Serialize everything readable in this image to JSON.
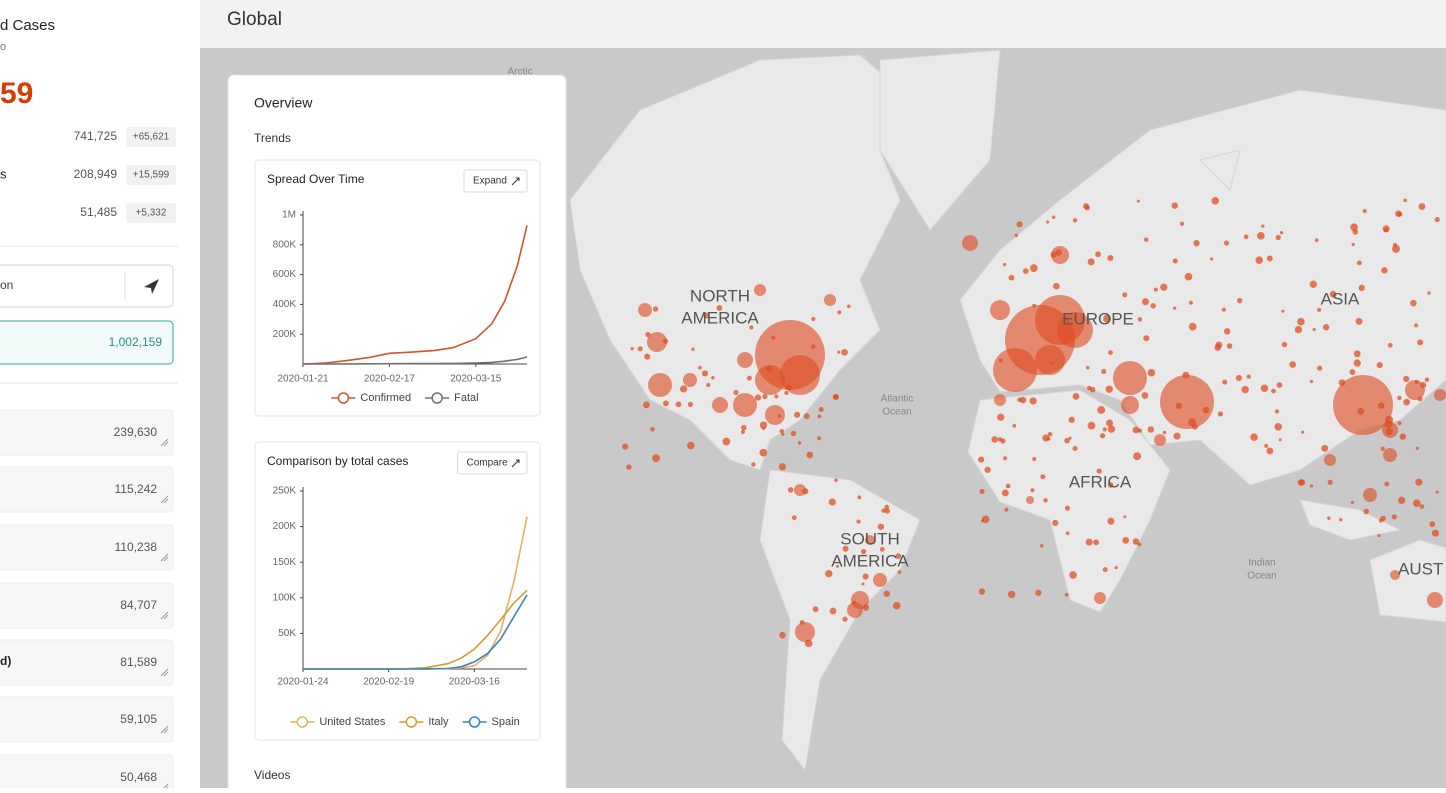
{
  "sidebar": {
    "title": "d Cases",
    "subtitle": "o",
    "total": "59",
    "stats": [
      {
        "value": "741,725",
        "delta": "+65,621"
      },
      {
        "label": "s",
        "value": "208,949",
        "delta": "+15,599"
      },
      {
        "value": "51,485",
        "delta": "+5,332"
      }
    ],
    "search": "on",
    "selected": "1,002,159",
    "list": [
      {
        "value": "239,630"
      },
      {
        "value": "115,242"
      },
      {
        "value": "110,238"
      },
      {
        "value": "84,707"
      },
      {
        "label": "d)",
        "value": "81,589"
      },
      {
        "value": "59,105"
      },
      {
        "value": "50,468"
      }
    ]
  },
  "header": {
    "title": "Global"
  },
  "map": {
    "continents": [
      [
        "NORTH",
        "AMERICA"
      ],
      [
        "EUROPE"
      ],
      [
        "ASIA"
      ],
      [
        "AFRICA"
      ],
      [
        "SOUTH",
        "AMERICA"
      ],
      [
        "AUST"
      ]
    ],
    "oceans": [
      [
        "Atlantic",
        "Ocean"
      ],
      [
        "Indian",
        "Ocean"
      ],
      [
        "Arctic"
      ]
    ]
  },
  "overview": {
    "title": "Overview",
    "section": "Trends",
    "videos": "Videos",
    "charts": [
      {
        "type": "line",
        "title": "Spread Over Time",
        "button": "Expand",
        "x": [
          "2020-01-21",
          "2020-01-28",
          "2020-02-04",
          "2020-02-11",
          "2020-02-17",
          "2020-02-24",
          "2020-03-02",
          "2020-03-08",
          "2020-03-15",
          "2020-03-20",
          "2020-03-24",
          "2020-03-28",
          "2020-03-31"
        ],
        "xlim": [
          "2020-01-21",
          "2020-03-31"
        ],
        "xticks": [
          "2020-01-21",
          "2020-02-17",
          "2020-03-15"
        ],
        "ylim": [
          0,
          1000000
        ],
        "yticks": [
          {
            "value": 200000,
            "label": "200K"
          },
          {
            "value": 400000,
            "label": "400K"
          },
          {
            "value": 600000,
            "label": "600K"
          },
          {
            "value": 800000,
            "label": "800K"
          },
          {
            "value": 1000000,
            "label": "1M"
          }
        ],
        "series": [
          {
            "name": "Confirmed",
            "color": "#d4532c",
            "values": [
              300,
              6000,
              24000,
              45000,
              72000,
              80000,
              90000,
              110000,
              170000,
              270000,
              420000,
              660000,
              930000
            ]
          },
          {
            "name": "Fatal",
            "color": "#707070",
            "values": [
              0,
              130,
              490,
              1100,
              1870,
              2700,
              3100,
              3800,
              6500,
              11000,
              19000,
              31000,
              47000
            ]
          }
        ]
      },
      {
        "type": "line",
        "title": "Comparison by total cases",
        "button": "Compare",
        "x": [
          "2020-01-24",
          "2020-02-19",
          "2020-02-24",
          "2020-03-01",
          "2020-03-08",
          "2020-03-12",
          "2020-03-16",
          "2020-03-20",
          "2020-03-24",
          "2020-03-28",
          "2020-04-01"
        ],
        "xlim": [
          "2020-01-24",
          "2020-04-01"
        ],
        "xticks": [
          "2020-01-24",
          "2020-02-19",
          "2020-03-16"
        ],
        "ylim": [
          0,
          250000
        ],
        "yticks": [
          {
            "value": 50000,
            "label": "50K"
          },
          {
            "value": 100000,
            "label": "100K"
          },
          {
            "value": 150000,
            "label": "150K"
          },
          {
            "value": 200000,
            "label": "200K"
          },
          {
            "value": 250000,
            "label": "250K"
          }
        ],
        "series": [
          {
            "name": "United States",
            "color": "#e6b064",
            "values": [
              2,
              15,
              53,
              75,
              540,
              1600,
              4600,
              19000,
              53000,
              122000,
              214000
            ]
          },
          {
            "name": "Italy",
            "color": "#d99a2e",
            "values": [
              0,
              3,
              229,
              1694,
              7375,
              15113,
              27980,
              47021,
              69176,
              92472,
              110574
            ]
          },
          {
            "name": "Spain",
            "color": "#3a80c2",
            "values": [
              0,
              2,
              3,
              84,
              673,
              3146,
              9942,
              21571,
              42058,
              73235,
              104118
            ]
          }
        ]
      }
    ]
  }
}
